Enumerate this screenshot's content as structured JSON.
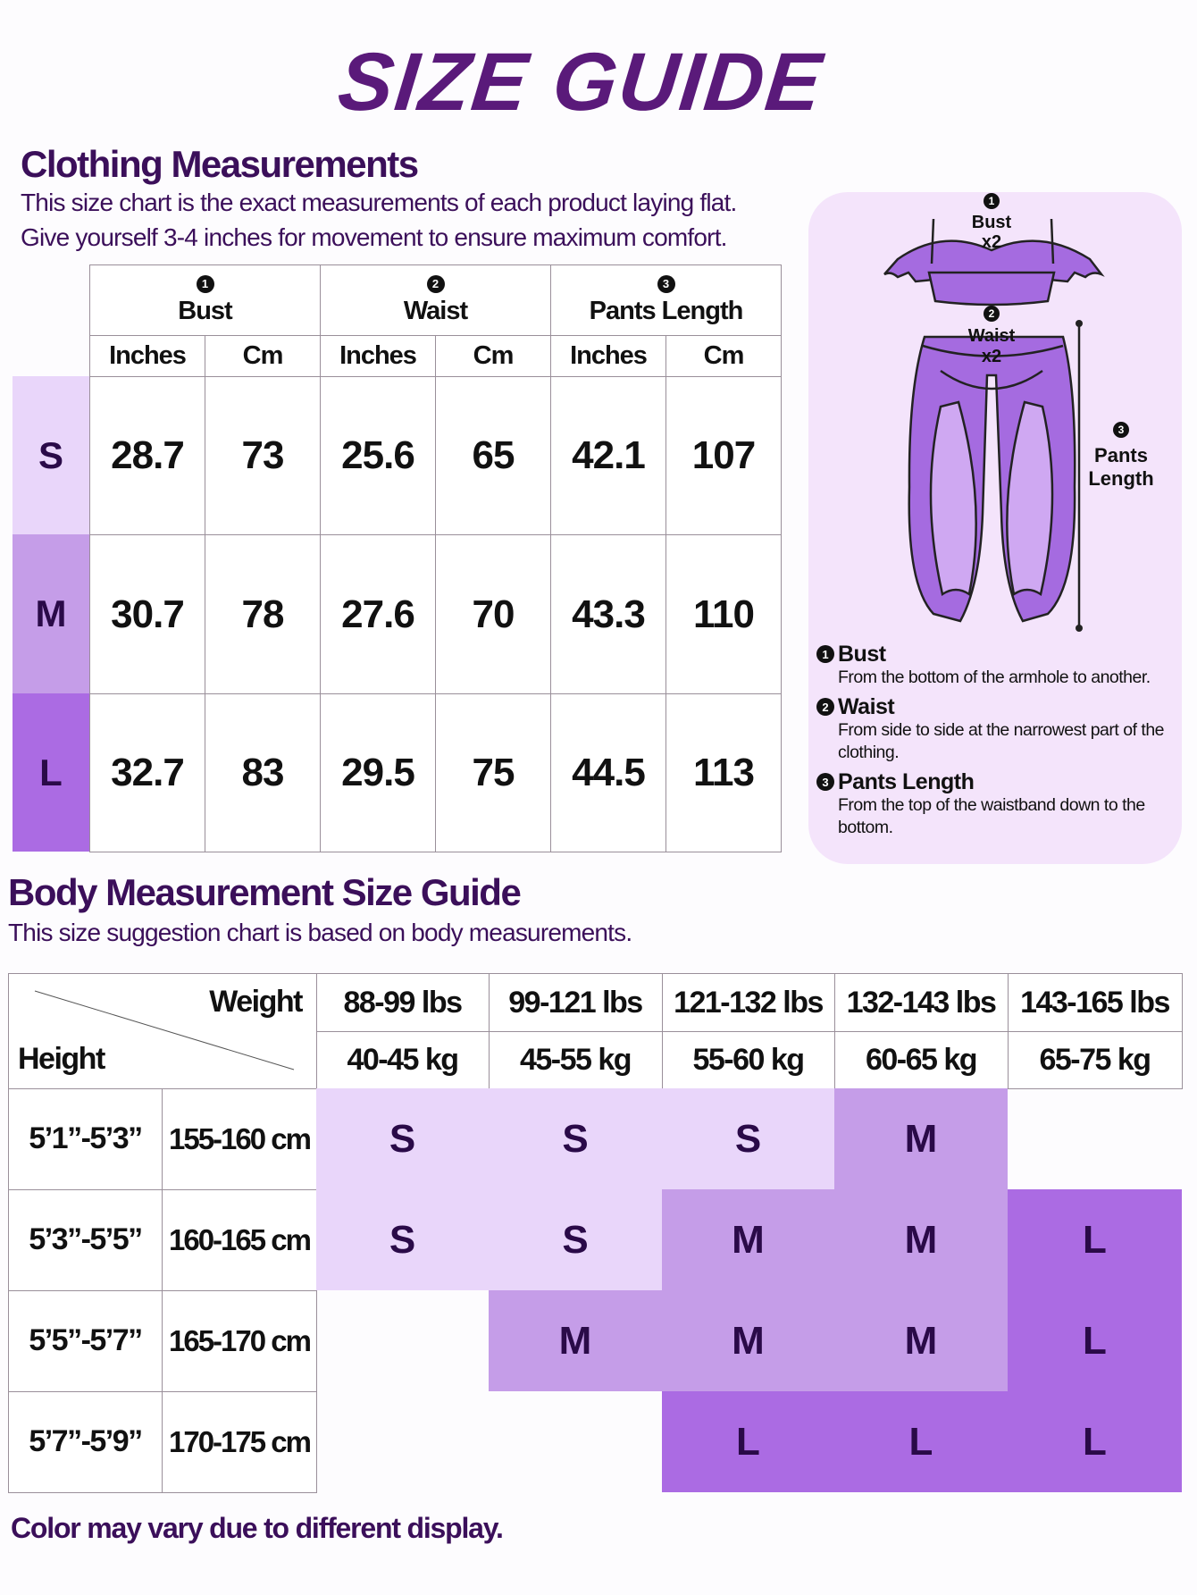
{
  "title": "SIZE GUIDE",
  "colors": {
    "S": "#e9d6fa",
    "M": "#c59de8",
    "L": "#ab6be3",
    "accent": "#3b0f5a"
  },
  "clothing": {
    "heading": "Clothing Measurements",
    "desc1": "This size chart is the exact measurements of each product laying flat.",
    "desc2": "Give yourself 3-4 inches for movement to ensure maximum comfort.",
    "groups": [
      {
        "num": "1",
        "label": "Bust"
      },
      {
        "num": "2",
        "label": "Waist"
      },
      {
        "num": "3",
        "label": "Pants Length"
      }
    ],
    "units": [
      "Inches",
      "Cm",
      "Inches",
      "Cm",
      "Inches",
      "Cm"
    ],
    "rows": [
      {
        "size": "S",
        "values": [
          "28.7",
          "73",
          "25.6",
          "65",
          "42.1",
          "107"
        ]
      },
      {
        "size": "M",
        "values": [
          "30.7",
          "78",
          "27.6",
          "70",
          "43.3",
          "110"
        ]
      },
      {
        "size": "L",
        "values": [
          "32.7",
          "83",
          "29.5",
          "75",
          "44.5",
          "113"
        ]
      }
    ]
  },
  "diagram": {
    "bust_label": "Bust",
    "bust_mult": "x2",
    "waist_label": "Waist",
    "waist_mult": "x2",
    "pants_label1": "Pants",
    "pants_label2": "Length",
    "legend": [
      {
        "num": "1",
        "title": "Bust",
        "desc": "From the bottom of the armhole to another."
      },
      {
        "num": "2",
        "title": "Waist",
        "desc": "From side to side at the narrowest part of the clothing."
      },
      {
        "num": "3",
        "title": "Pants Length",
        "desc": "From the top of the waistband down to the bottom."
      }
    ]
  },
  "body": {
    "heading": "Body Measurement Size Guide",
    "desc": "This size suggestion chart is based on body measurements.",
    "weight_label": "Weight",
    "height_label": "Height",
    "weights_lbs": [
      "88-99 lbs",
      "99-121 lbs",
      "121-132 lbs",
      "132-143 lbs",
      "143-165 lbs"
    ],
    "weights_kg": [
      "40-45 kg",
      "45-55 kg",
      "55-60 kg",
      "60-65 kg",
      "65-75 kg"
    ],
    "rows": [
      {
        "ft": "5’1”-5’3”",
        "cm": "155-160 cm",
        "sizes": [
          "S",
          "S",
          "S",
          "M",
          ""
        ]
      },
      {
        "ft": "5’3”-5’5”",
        "cm": "160-165 cm",
        "sizes": [
          "S",
          "S",
          "M",
          "M",
          "L"
        ]
      },
      {
        "ft": "5’5”-5’7”",
        "cm": "165-170 cm",
        "sizes": [
          "",
          "M",
          "M",
          "M",
          "L"
        ]
      },
      {
        "ft": "5’7”-5’9”",
        "cm": "170-175 cm",
        "sizes": [
          "",
          "",
          "L",
          "L",
          "L"
        ]
      }
    ]
  },
  "footer": "Color may vary due to different display."
}
